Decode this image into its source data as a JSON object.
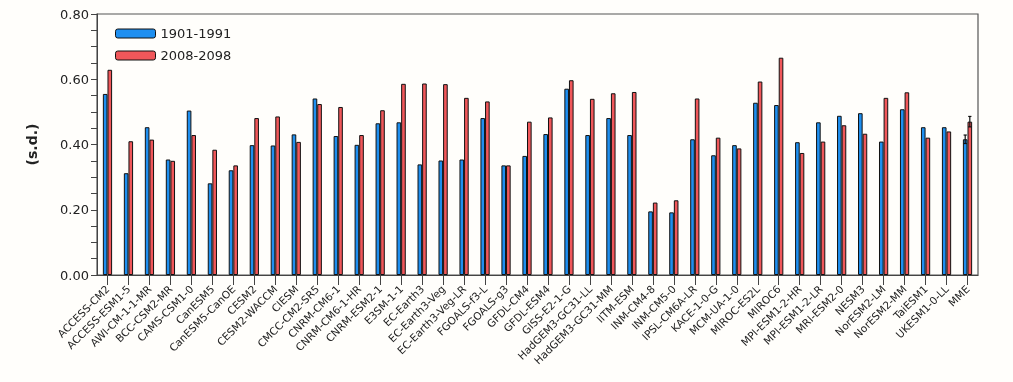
{
  "chart_data": {
    "type": "bar",
    "ylabel": "(s.d.)",
    "categories": [
      "ACCESS-CM2",
      "ACCESS-ESM1-5",
      "AWI-CM-1-1-MR",
      "BCC-CSM2-MR",
      "CAMS-CSM1-0",
      "CanESM5",
      "CanESM5-CanOE",
      "CESM2",
      "CESM2-WACCM",
      "CIESM",
      "CMCC-CM2-SR5",
      "CNRM-CM6-1",
      "CNRM-CM6-1-HR",
      "CNRM-ESM2-1",
      "E3SM-1-1",
      "EC-Earth3",
      "EC-Earth3-Veg",
      "EC-Earth3-Veg-LR",
      "FGOALS-f3-L",
      "FGOALS-g3",
      "GFDL-CM4",
      "GFDL-ESM4",
      "GISS-E2-1-G",
      "HadGEM3-GC31-LL",
      "HadGEM3-GC31-MM",
      "IITM-ESM",
      "INM-CM4-8",
      "INM-CM5-0",
      "IPSL-CM6A-LR",
      "KACE-1-0-G",
      "MCM-UA-1-0",
      "MIROC-ES2L",
      "MIROC6",
      "MPI-ESM1-2-HR",
      "MPI-ESM1-2-LR",
      "MRI-ESM2-0",
      "NESM3",
      "NorESM2-LM",
      "NorESM2-MM",
      "TaiESM1",
      "UKESM1-0-LL",
      "MME"
    ],
    "series": [
      {
        "name": "1901-1991",
        "color": "#1e8ff0",
        "values": [
          0.555,
          0.312,
          0.453,
          0.354,
          0.504,
          0.281,
          0.321,
          0.398,
          0.397,
          0.431,
          0.541,
          0.426,
          0.399,
          0.465,
          0.468,
          0.339,
          0.351,
          0.354,
          0.481,
          0.336,
          0.365,
          0.432,
          0.571,
          0.429,
          0.481,
          0.429,
          0.195,
          0.192,
          0.416,
          0.367,
          0.398,
          0.528,
          0.521,
          0.407,
          0.468,
          0.488,
          0.496,
          0.409,
          0.508,
          0.453,
          0.453,
          0.416
        ],
        "errors": [
          null,
          null,
          null,
          null,
          null,
          null,
          null,
          null,
          null,
          null,
          null,
          null,
          null,
          null,
          null,
          null,
          null,
          null,
          null,
          null,
          null,
          null,
          null,
          null,
          null,
          null,
          null,
          null,
          null,
          null,
          null,
          null,
          null,
          null,
          null,
          null,
          null,
          null,
          null,
          null,
          null,
          0.013
        ]
      },
      {
        "name": "2008-2098",
        "color": "#f0575a",
        "values": [
          0.629,
          0.41,
          0.415,
          0.35,
          0.429,
          0.384,
          0.336,
          0.481,
          0.486,
          0.408,
          0.524,
          0.515,
          0.429,
          0.505,
          0.586,
          0.587,
          0.585,
          0.543,
          0.532,
          0.336,
          0.47,
          0.483,
          0.597,
          0.54,
          0.557,
          0.561,
          0.222,
          0.229,
          0.541,
          0.421,
          0.388,
          0.593,
          0.666,
          0.374,
          0.409,
          0.459,
          0.433,
          0.543,
          0.56,
          0.421,
          0.44,
          0.47
        ],
        "errors": [
          null,
          null,
          null,
          null,
          null,
          null,
          null,
          null,
          null,
          null,
          null,
          null,
          null,
          null,
          null,
          null,
          null,
          null,
          null,
          null,
          null,
          null,
          null,
          null,
          null,
          null,
          null,
          null,
          null,
          null,
          null,
          null,
          null,
          null,
          null,
          null,
          null,
          null,
          null,
          null,
          null,
          0.016
        ]
      }
    ],
    "ylim": [
      0,
      0.8
    ],
    "yticks": [
      {
        "value": 0,
        "label": "0.00"
      },
      {
        "value": 0.05,
        "label": null
      },
      {
        "value": 0.1,
        "label": null
      },
      {
        "value": 0.15,
        "label": null
      },
      {
        "value": 0.2,
        "label": "0.20"
      },
      {
        "value": 0.25,
        "label": null
      },
      {
        "value": 0.3,
        "label": null
      },
      {
        "value": 0.35,
        "label": null
      },
      {
        "value": 0.4,
        "label": "0.40"
      },
      {
        "value": 0.45,
        "label": null
      },
      {
        "value": 0.5,
        "label": null
      },
      {
        "value": 0.55,
        "label": null
      },
      {
        "value": 0.6,
        "label": "0.60"
      },
      {
        "value": 0.65,
        "label": null
      },
      {
        "value": 0.7,
        "label": null
      },
      {
        "value": 0.75,
        "label": null
      },
      {
        "value": 0.8,
        "label": "0.80"
      }
    ],
    "grid": false,
    "legend": "top left"
  }
}
